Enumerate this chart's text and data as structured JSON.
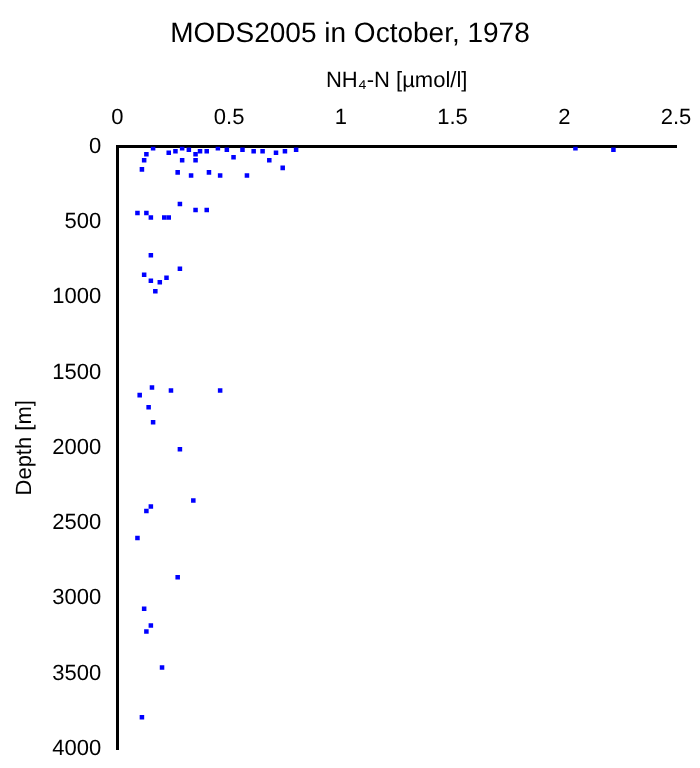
{
  "chart_data": {
    "type": "scatter",
    "title": "MODS2005 in October, 1978",
    "xlabel": "NH₄-N [µmol/l]",
    "ylabel": "Depth [m]",
    "xlim": [
      0,
      2.5
    ],
    "xticks": [
      0,
      0.5,
      1,
      1.5,
      2,
      2.5
    ],
    "ylim": [
      4000,
      0
    ],
    "yticks": [
      0,
      500,
      1000,
      1500,
      2000,
      2500,
      3000,
      3500,
      4000
    ],
    "grid": false,
    "marker": "square",
    "series": [
      {
        "color": "#0000ff",
        "x": [
          0.16,
          0.13,
          0.12,
          0.11,
          0.26,
          0.23,
          0.29,
          0.32,
          0.35,
          0.37,
          0.4,
          0.45,
          0.49,
          0.52,
          0.56,
          0.61,
          0.65,
          0.68,
          0.71,
          0.75,
          0.8,
          0.27,
          0.33,
          0.41,
          0.46,
          0.58,
          0.29,
          0.35,
          0.74,
          2.05,
          2.22,
          0.09,
          0.13,
          0.15,
          0.21,
          0.23,
          0.28,
          0.35,
          0.4,
          0.15,
          0.12,
          0.15,
          0.19,
          0.22,
          0.17,
          0.28,
          0.1,
          0.155,
          0.24,
          0.46,
          0.14,
          0.16,
          0.28,
          0.34,
          0.15,
          0.13,
          0.09,
          0.27,
          0.12,
          0.15,
          0.13,
          0.2,
          0.11
        ],
        "values": [
          10,
          50,
          90,
          150,
          30,
          40,
          10,
          20,
          50,
          30,
          30,
          10,
          20,
          70,
          20,
          30,
          30,
          90,
          40,
          30,
          20,
          170,
          190,
          170,
          190,
          190,
          90,
          90,
          140,
          10,
          20,
          440,
          440,
          470,
          470,
          470,
          380,
          420,
          420,
          720,
          850,
          890,
          900,
          870,
          960,
          810,
          1650,
          1600,
          1620,
          1620,
          1730,
          1830,
          2010,
          2350,
          2390,
          2420,
          2600,
          2860,
          3070,
          3180,
          3220,
          3460,
          3790
        ]
      }
    ]
  }
}
